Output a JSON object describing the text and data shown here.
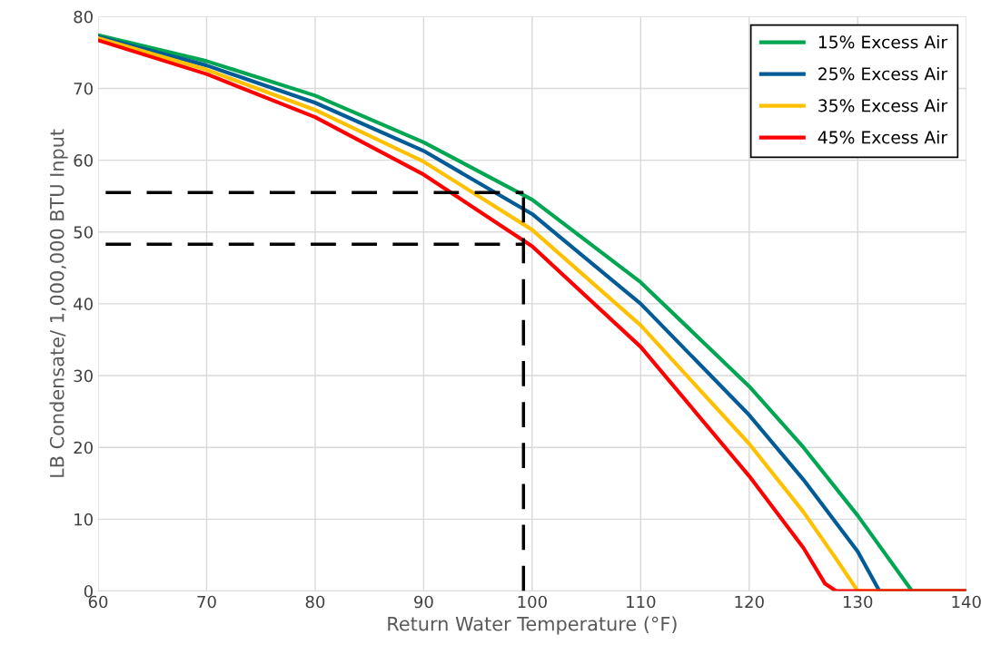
{
  "chart_data": {
    "type": "line",
    "xlabel": "Return Water Temperature (°F)",
    "ylabel": "LB Condensate/ 1,000,000 BTU Input",
    "xlim": [
      60,
      140
    ],
    "xticks": [
      60,
      70,
      80,
      90,
      100,
      110,
      120,
      130,
      140
    ],
    "ylim": [
      0,
      80
    ],
    "yticks": [
      0,
      10,
      20,
      30,
      40,
      50,
      60,
      70,
      80
    ],
    "grid": true,
    "legend": "top right",
    "marker": "none",
    "line_style": "solid",
    "series": [
      {
        "name": "15% Excess Air",
        "color": "#00a651",
        "x": [
          60,
          70,
          80,
          90,
          100,
          110,
          120,
          125,
          130,
          135,
          140
        ],
        "values": [
          77.4,
          73.8,
          69,
          62.5,
          54.5,
          43,
          28.5,
          20,
          10.5,
          0,
          0
        ]
      },
      {
        "name": "25% Excess Air",
        "color": "#005b96",
        "x": [
          60,
          70,
          80,
          90,
          100,
          110,
          120,
          125,
          130,
          132,
          140
        ],
        "values": [
          77.2,
          73.2,
          68,
          61.3,
          52.5,
          40,
          24.5,
          15.5,
          5.5,
          0,
          0
        ]
      },
      {
        "name": "35% Excess Air",
        "color": "#ffc000",
        "x": [
          60,
          70,
          80,
          90,
          100,
          110,
          120,
          125,
          128,
          130,
          140
        ],
        "values": [
          77,
          72.6,
          67,
          59.8,
          50.3,
          37,
          20.5,
          11,
          4.5,
          0,
          0
        ]
      },
      {
        "name": "45% Excess Air",
        "color": "#ff0000",
        "x": [
          60,
          70,
          80,
          90,
          100,
          110,
          120,
          125,
          127,
          128,
          140
        ],
        "values": [
          76.7,
          72,
          66,
          58,
          48,
          34,
          16,
          6,
          1,
          0,
          0
        ]
      },
      {
        "color": "#000000",
        "line_style": "dashed",
        "x": [
          60.7,
          99.2
        ],
        "values": [
          55.5,
          55.5
        ]
      },
      {
        "color": "#000000",
        "line_style": "dashed",
        "x": [
          60.7,
          99.2
        ],
        "values": [
          48.3,
          48.3
        ]
      },
      {
        "color": "#000000",
        "line_style": "dashed",
        "x": [
          99.2,
          99.2
        ],
        "values": [
          0,
          55.5
        ]
      }
    ]
  }
}
